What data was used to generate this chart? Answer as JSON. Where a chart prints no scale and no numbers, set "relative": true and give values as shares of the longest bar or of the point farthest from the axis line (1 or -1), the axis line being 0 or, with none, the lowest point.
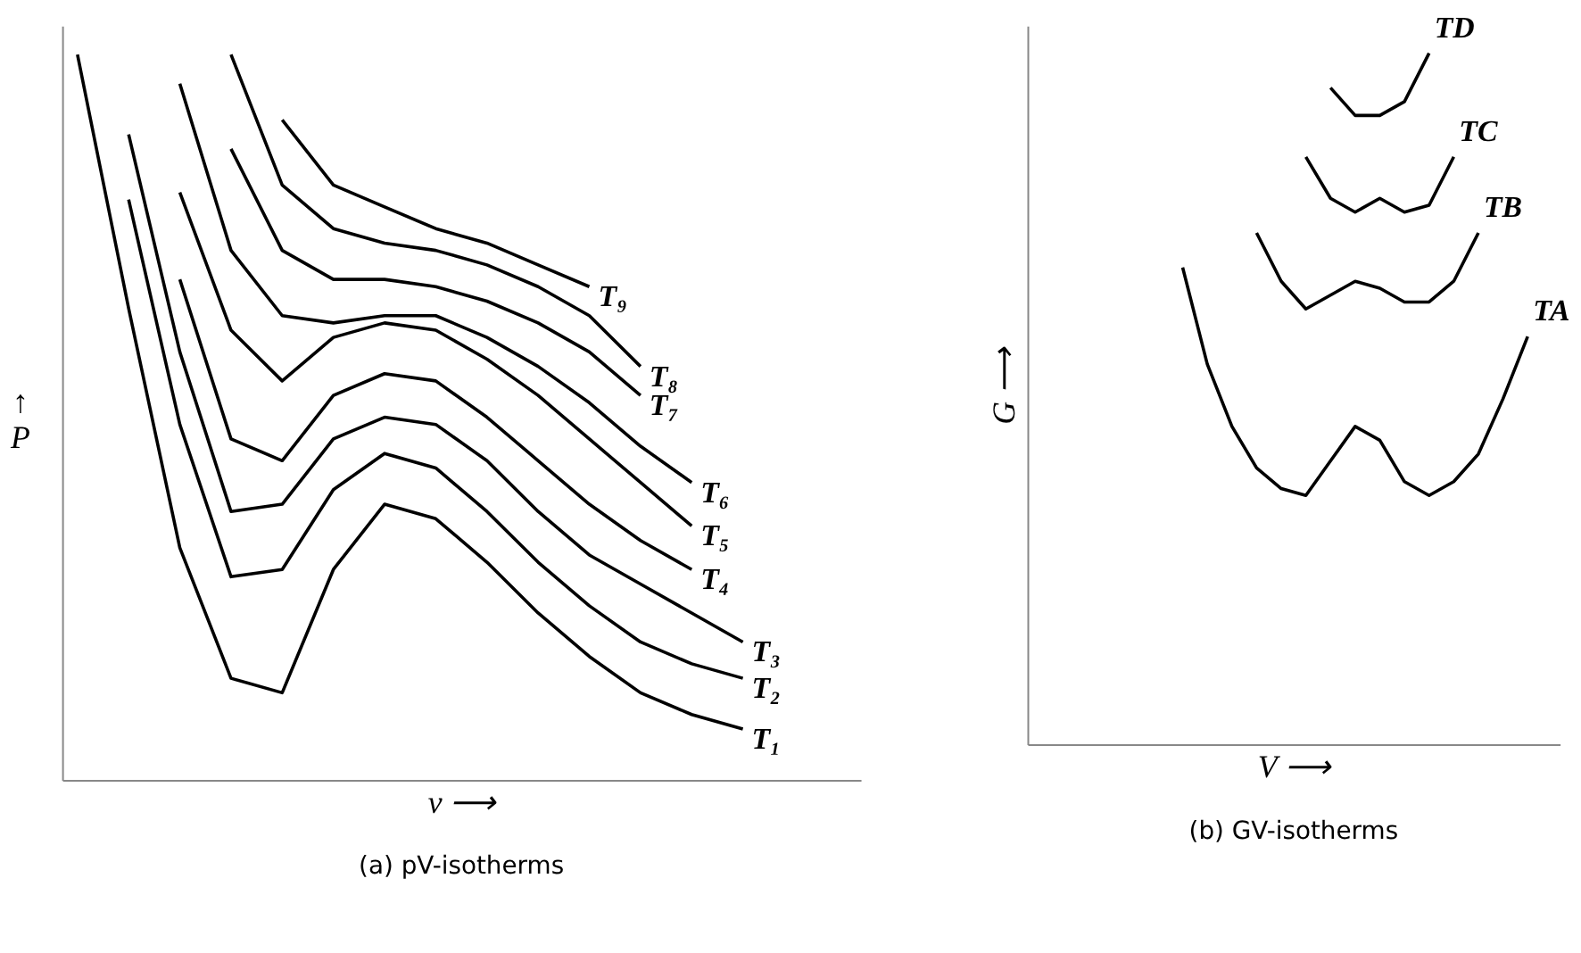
{
  "chart_data": [
    {
      "type": "line",
      "relative": true,
      "title": "(a) pV-isotherms",
      "xlabel": "v ⟶",
      "ylabel": "↑\nP",
      "tick_labels": false,
      "legend": false,
      "line_style": "solid",
      "marker": "none",
      "categories": [
        null,
        null,
        null,
        null,
        null,
        null,
        null,
        null,
        null,
        null,
        null,
        null,
        null,
        null,
        null,
        null
      ],
      "series": [
        {
          "name": "T₁",
          "color": "#000000",
          "values": [
            1.0,
            0.65,
            0.32,
            0.14,
            0.12,
            0.29,
            0.38,
            0.36,
            0.3,
            0.23,
            0.17,
            0.12,
            0.09,
            0.07,
            null,
            null
          ]
        },
        {
          "name": "T₂",
          "color": "#000000",
          "values": [
            null,
            0.8,
            0.49,
            0.28,
            0.29,
            0.4,
            0.45,
            0.43,
            0.37,
            0.3,
            0.24,
            0.19,
            0.16,
            0.14,
            null,
            null
          ]
        },
        {
          "name": "T₃",
          "color": "#000000",
          "values": [
            null,
            0.89,
            0.59,
            0.37,
            0.38,
            0.47,
            0.5,
            0.49,
            0.44,
            0.37,
            0.31,
            0.27,
            0.23,
            0.19,
            null,
            null
          ]
        },
        {
          "name": "T₄",
          "color": "#000000",
          "values": [
            null,
            null,
            0.69,
            0.47,
            0.44,
            0.53,
            0.56,
            0.55,
            0.5,
            0.44,
            0.38,
            0.33,
            0.29,
            null,
            null,
            null
          ]
        },
        {
          "name": "T₅",
          "color": "#000000",
          "values": [
            null,
            null,
            0.81,
            0.62,
            0.55,
            0.61,
            0.63,
            0.62,
            0.58,
            0.53,
            0.47,
            0.41,
            0.35,
            null,
            null,
            null
          ]
        },
        {
          "name": "T₆",
          "color": "#000000",
          "values": [
            null,
            null,
            0.96,
            0.73,
            0.64,
            0.63,
            0.64,
            0.64,
            0.61,
            0.57,
            0.52,
            0.46,
            0.41,
            null,
            null,
            null
          ]
        },
        {
          "name": "T₇",
          "color": "#000000",
          "values": [
            null,
            null,
            null,
            0.87,
            0.73,
            0.69,
            0.69,
            0.68,
            0.66,
            0.63,
            0.59,
            0.53,
            null,
            null,
            null,
            null
          ]
        },
        {
          "name": "T₈",
          "color": "#000000",
          "values": [
            null,
            null,
            null,
            1.0,
            0.82,
            0.76,
            0.74,
            0.73,
            0.71,
            0.68,
            0.64,
            0.57,
            null,
            null,
            null,
            null
          ]
        },
        {
          "name": "T₉",
          "color": "#000000",
          "values": [
            null,
            null,
            null,
            null,
            0.91,
            0.82,
            0.79,
            0.76,
            0.74,
            0.71,
            0.68,
            null,
            null,
            null,
            null,
            null
          ]
        }
      ]
    },
    {
      "type": "line",
      "relative": true,
      "title": "(b) GV-isotherms",
      "xlabel": "V ⟶",
      "ylabel": "G ⟶",
      "tick_labels": false,
      "legend": false,
      "line_style": "solid",
      "marker": "none",
      "categories": [
        null,
        null,
        null,
        null,
        null,
        null,
        null,
        null,
        null,
        null,
        null,
        null,
        null,
        null,
        null,
        null,
        null,
        null,
        null,
        null,
        null,
        null
      ],
      "series": [
        {
          "name": "TA",
          "color": "#000000",
          "values": [
            null,
            null,
            null,
            null,
            null,
            null,
            0.69,
            0.55,
            0.46,
            0.4,
            0.37,
            0.36,
            0.41,
            0.46,
            0.44,
            0.38,
            0.36,
            0.38,
            0.42,
            0.5,
            0.59,
            null
          ]
        },
        {
          "name": "TB",
          "color": "#000000",
          "values": [
            null,
            null,
            null,
            null,
            null,
            null,
            null,
            null,
            null,
            0.74,
            0.67,
            0.63,
            0.65,
            0.67,
            0.66,
            0.64,
            0.64,
            0.67,
            0.74,
            null,
            null,
            null
          ]
        },
        {
          "name": "TC",
          "color": "#000000",
          "values": [
            null,
            null,
            null,
            null,
            null,
            null,
            null,
            null,
            null,
            null,
            null,
            0.85,
            0.79,
            0.77,
            0.79,
            0.77,
            0.78,
            0.85,
            null,
            null,
            null,
            null
          ]
        },
        {
          "name": "TD",
          "color": "#000000",
          "values": [
            null,
            null,
            null,
            null,
            null,
            null,
            null,
            null,
            null,
            null,
            null,
            null,
            0.95,
            0.91,
            0.91,
            0.93,
            1.0,
            null,
            null,
            null,
            null,
            null
          ]
        }
      ]
    }
  ]
}
